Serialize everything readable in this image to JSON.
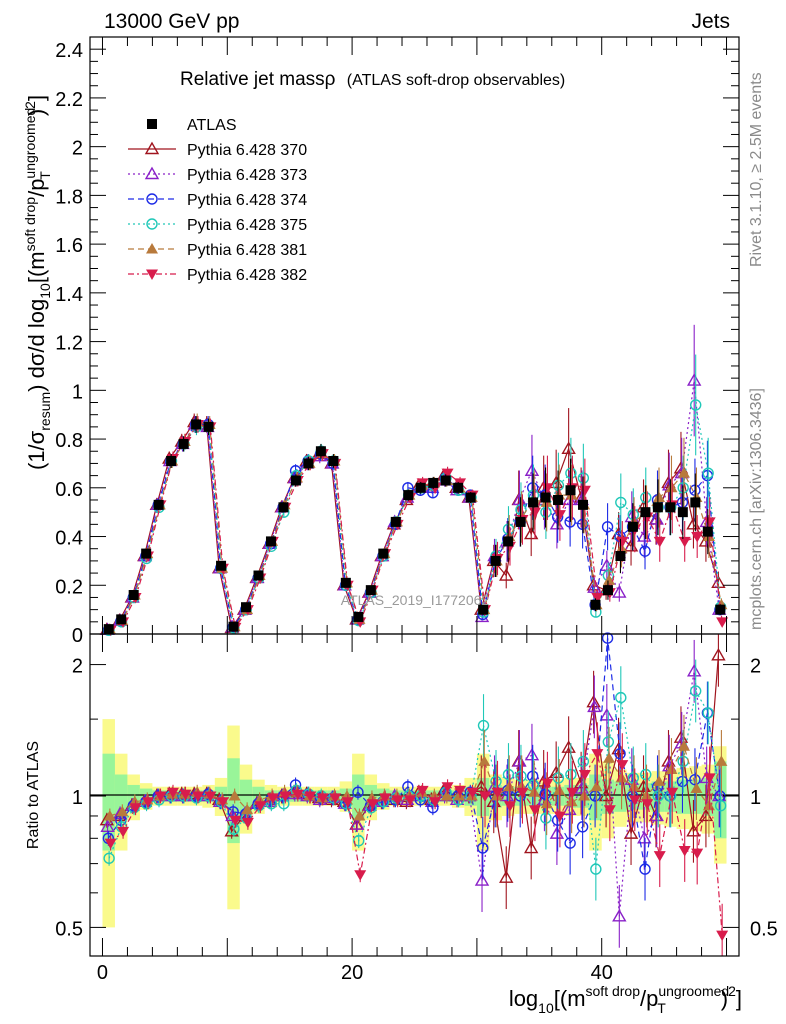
{
  "header": {
    "energy_label": "13000 GeV pp",
    "category_label": "Jets"
  },
  "side": {
    "rivet_label": "Rivet 3.1.10, ≥ 2.5M events",
    "mcplots_label": "mcplots.cern.ch [arXiv:1306.3436]"
  },
  "watermark": "ATLAS_2019_I1772062",
  "chart_data": {
    "type": "scatter",
    "title": "Relative jet massρ",
    "subtitle": "(ATLAS soft-drop observables)",
    "ylabel": "(1/σresum) dσ/d log10[(msoft drop/pTungroomed)2]",
    "xlabel": "log10[(msoft drop/pTungroomed)2]",
    "ratio_ylabel": "Ratio to ATLAS",
    "xlim": [
      -1,
      51
    ],
    "ylim": [
      0,
      2.45
    ],
    "ratio_ylim": [
      0.43,
      2.35
    ],
    "x_ticks": [
      0,
      20,
      40
    ],
    "y_ticks": [
      0,
      0.2,
      0.4,
      0.6,
      0.8,
      1,
      1.2,
      1.4,
      1.6,
      1.8,
      2,
      2.2,
      2.4
    ],
    "y_tick_labels": [
      "0",
      "0.2",
      "0.4",
      "0.6",
      "0.8",
      "1",
      "1.2",
      "1.4",
      "1.6",
      "1.8",
      "2",
      "2.2",
      "2.4"
    ],
    "ratio_ticks": [
      0.5,
      1,
      2
    ],
    "ratio_tick_labels": [
      "0.5",
      "1",
      "2"
    ],
    "x": [
      0.5,
      1.5,
      2.5,
      3.5,
      4.5,
      5.5,
      6.5,
      7.5,
      8.5,
      9.5,
      10.5,
      11.5,
      12.5,
      13.5,
      14.5,
      15.5,
      16.5,
      17.5,
      18.5,
      19.5,
      20.5,
      21.5,
      22.5,
      23.5,
      24.5,
      25.5,
      26.5,
      27.5,
      28.5,
      29.5,
      30.5,
      31.5,
      32.5,
      33.5,
      34.5,
      35.5,
      36.5,
      37.5,
      38.5,
      39.5,
      40.5,
      41.5,
      42.5,
      43.5,
      44.5,
      45.5,
      46.5,
      47.5,
      48.5,
      49.5
    ],
    "series": [
      {
        "name": "ATLAS",
        "color": "#000000",
        "marker": "square",
        "dash": "",
        "line": false,
        "values": [
          0.02,
          0.06,
          0.16,
          0.33,
          0.53,
          0.71,
          0.78,
          0.86,
          0.85,
          0.28,
          0.03,
          0.11,
          0.24,
          0.38,
          0.52,
          0.63,
          0.7,
          0.75,
          0.71,
          0.21,
          0.07,
          0.18,
          0.33,
          0.46,
          0.57,
          0.6,
          0.62,
          0.63,
          0.6,
          0.56,
          0.1,
          0.3,
          0.38,
          0.46,
          0.54,
          0.56,
          0.55,
          0.59,
          0.53,
          0.12,
          0.18,
          0.32,
          0.44,
          0.5,
          0.52,
          0.52,
          0.5,
          0.54,
          0.42,
          0.1
        ],
        "ratios": [
          1,
          1,
          1,
          1,
          1,
          1,
          1,
          1,
          1,
          1,
          1,
          1,
          1,
          1,
          1,
          1,
          1,
          1,
          1,
          1,
          1,
          1,
          1,
          1,
          1,
          1,
          1,
          1,
          1,
          1,
          1,
          1,
          1,
          1,
          1,
          1,
          1,
          1,
          1,
          1,
          1,
          1,
          1,
          1,
          1,
          1,
          1,
          1,
          1,
          1
        ]
      },
      {
        "name": "Pythia 6.428 370",
        "color": "#a0141e",
        "marker": "triangle-open",
        "dash": "",
        "line": true,
        "values": [
          0.018,
          0.055,
          0.15,
          0.32,
          0.53,
          0.72,
          0.79,
          0.87,
          0.86,
          0.27,
          0.025,
          0.1,
          0.23,
          0.37,
          0.52,
          0.64,
          0.71,
          0.74,
          0.7,
          0.2,
          0.06,
          0.17,
          0.32,
          0.45,
          0.55,
          0.61,
          0.61,
          0.65,
          0.6,
          0.56,
          0.1,
          0.3,
          0.24,
          0.55,
          0.41,
          0.6,
          0.62,
          0.76,
          0.56,
          0.2,
          0.18,
          0.41,
          0.36,
          0.52,
          0.47,
          0.62,
          0.68,
          0.45,
          0.38,
          0.21
        ],
        "ratios": [
          0.88,
          0.9,
          0.95,
          0.97,
          1.0,
          1.01,
          1.01,
          1.01,
          1.01,
          0.98,
          0.83,
          0.9,
          0.96,
          0.98,
          1.0,
          1.02,
          1.01,
          0.99,
          0.98,
          0.97,
          0.86,
          0.95,
          0.97,
          0.98,
          0.97,
          1.02,
          0.98,
          1.03,
          1.0,
          1.0,
          1.05,
          0.97,
          0.65,
          1.2,
          0.76,
          1.08,
          1.13,
          1.29,
          1.07,
          1.64,
          1.0,
          1.28,
          0.82,
          1.05,
          0.9,
          1.2,
          1.36,
          0.83,
          0.9,
          2.1
        ]
      },
      {
        "name": "Pythia 6.428 373",
        "color": "#8a20c8",
        "marker": "triangle-open",
        "dash": "2,3",
        "line": true,
        "values": [
          0.017,
          0.055,
          0.15,
          0.32,
          0.53,
          0.71,
          0.78,
          0.86,
          0.85,
          0.27,
          0.028,
          0.1,
          0.23,
          0.37,
          0.52,
          0.64,
          0.7,
          0.73,
          0.7,
          0.2,
          0.06,
          0.17,
          0.32,
          0.46,
          0.56,
          0.6,
          0.6,
          0.63,
          0.59,
          0.56,
          0.07,
          0.32,
          0.38,
          0.55,
          0.67,
          0.55,
          0.45,
          0.55,
          0.55,
          0.19,
          0.28,
          0.17,
          0.48,
          0.4,
          0.47,
          0.61,
          0.66,
          1.04,
          0.46,
          0.1
        ],
        "ratios": [
          0.85,
          0.91,
          0.95,
          0.97,
          1.0,
          1.0,
          1.0,
          1.0,
          1.0,
          0.97,
          0.9,
          0.91,
          0.96,
          0.97,
          1.0,
          1.01,
          1.0,
          0.98,
          0.99,
          0.96,
          0.86,
          0.95,
          0.97,
          1.0,
          0.98,
          1.0,
          0.97,
          1.0,
          0.98,
          1.0,
          0.64,
          1.05,
          1.0,
          1.2,
          1.24,
          0.98,
          0.82,
          0.93,
          1.04,
          1.6,
          1.53,
          0.53,
          1.09,
          0.8,
          0.9,
          1.17,
          1.32,
          1.93,
          1.1,
          1.0
        ]
      },
      {
        "name": "Pythia 6.428 374",
        "color": "#1d2be6",
        "marker": "circle-open",
        "dash": "6,4",
        "line": true,
        "values": [
          0.016,
          0.052,
          0.15,
          0.32,
          0.53,
          0.71,
          0.78,
          0.86,
          0.86,
          0.27,
          0.029,
          0.1,
          0.23,
          0.37,
          0.52,
          0.67,
          0.71,
          0.74,
          0.7,
          0.2,
          0.06,
          0.17,
          0.32,
          0.45,
          0.6,
          0.59,
          0.58,
          0.64,
          0.6,
          0.57,
          0.08,
          0.3,
          0.39,
          0.46,
          0.6,
          0.57,
          0.48,
          0.46,
          0.45,
          0.12,
          0.44,
          0.4,
          0.44,
          0.34,
          0.55,
          0.52,
          0.54,
          0.59,
          0.65,
          0.1
        ],
        "ratios": [
          0.8,
          0.88,
          0.95,
          0.97,
          1.0,
          1.0,
          1.0,
          1.0,
          1.01,
          0.97,
          0.92,
          0.91,
          0.96,
          0.98,
          1.0,
          1.06,
          1.01,
          0.99,
          0.99,
          0.96,
          1.02,
          0.95,
          0.97,
          0.98,
          1.05,
          0.98,
          0.94,
          1.02,
          1.0,
          1.02,
          0.76,
          1.0,
          1.03,
          1.0,
          1.11,
          1.01,
          0.88,
          0.78,
          0.85,
          1.0,
          2.3,
          1.25,
          1.0,
          0.68,
          1.05,
          1.0,
          1.08,
          1.09,
          1.55,
          1.0
        ]
      },
      {
        "name": "Pythia 6.428 375",
        "color": "#20c8b8",
        "marker": "circle-open",
        "dash": "2,3",
        "line": true,
        "values": [
          0.015,
          0.05,
          0.15,
          0.31,
          0.52,
          0.71,
          0.78,
          0.85,
          0.85,
          0.27,
          0.025,
          0.1,
          0.23,
          0.36,
          0.5,
          0.65,
          0.71,
          0.75,
          0.71,
          0.2,
          0.055,
          0.17,
          0.32,
          0.46,
          0.57,
          0.6,
          0.61,
          0.64,
          0.59,
          0.56,
          0.09,
          0.32,
          0.43,
          0.51,
          0.57,
          0.5,
          0.61,
          0.66,
          0.64,
          0.09,
          0.24,
          0.54,
          0.49,
          0.56,
          0.52,
          0.52,
          0.6,
          0.94,
          0.66,
          0.11
        ],
        "ratios": [
          0.72,
          0.85,
          0.94,
          0.96,
          0.98,
          1.0,
          1.0,
          0.99,
          1.0,
          0.97,
          0.84,
          0.89,
          0.95,
          0.96,
          0.96,
          1.03,
          1.01,
          1.0,
          0.99,
          0.96,
          0.79,
          0.94,
          0.97,
          0.99,
          1.0,
          1.0,
          0.98,
          1.02,
          0.98,
          1.0,
          1.45,
          1.08,
          1.12,
          1.11,
          1.06,
          0.89,
          1.1,
          1.12,
          1.2,
          0.68,
          1.33,
          1.68,
          1.1,
          1.12,
          1.0,
          1.0,
          1.2,
          1.74,
          1.55,
          0.95
        ]
      },
      {
        "name": "Pythia 6.428 381",
        "color": "#b87a3c",
        "marker": "triangle-filled",
        "dash": "6,4",
        "line": true,
        "values": [
          0.02,
          0.055,
          0.16,
          0.33,
          0.53,
          0.71,
          0.79,
          0.87,
          0.86,
          0.27,
          0.03,
          0.1,
          0.24,
          0.38,
          0.53,
          0.64,
          0.7,
          0.74,
          0.71,
          0.21,
          0.06,
          0.18,
          0.33,
          0.46,
          0.57,
          0.61,
          0.62,
          0.63,
          0.6,
          0.56,
          0.1,
          0.3,
          0.4,
          0.48,
          0.55,
          0.54,
          0.57,
          0.57,
          0.53,
          0.12,
          0.22,
          0.35,
          0.46,
          0.5,
          0.56,
          0.6,
          0.66,
          0.56,
          0.4,
          0.12
        ],
        "ratios": [
          0.9,
          0.92,
          0.97,
          0.98,
          1.0,
          1.01,
          1.01,
          1.02,
          1.01,
          0.98,
          1.0,
          0.93,
          0.98,
          1.0,
          1.02,
          1.02,
          1.0,
          0.99,
          1.0,
          1.0,
          0.9,
          0.99,
          1.0,
          1.0,
          1.0,
          1.02,
          1.0,
          1.0,
          1.0,
          1.0,
          1.2,
          1.0,
          1.05,
          1.05,
          1.02,
          0.96,
          1.03,
          0.97,
          1.0,
          1.05,
          1.22,
          1.1,
          1.05,
          1.0,
          1.08,
          1.15,
          1.3,
          1.04,
          0.95,
          1.2
        ]
      },
      {
        "name": "Pythia 6.428 382",
        "color": "#d81c4c",
        "marker": "triangle-down-filled",
        "dash": "6,3,2,3",
        "line": true,
        "values": [
          0.016,
          0.05,
          0.15,
          0.32,
          0.53,
          0.72,
          0.79,
          0.86,
          0.85,
          0.27,
          0.027,
          0.1,
          0.23,
          0.38,
          0.52,
          0.63,
          0.7,
          0.74,
          0.7,
          0.2,
          0.05,
          0.18,
          0.33,
          0.45,
          0.56,
          0.62,
          0.6,
          0.66,
          0.62,
          0.57,
          0.1,
          0.31,
          0.36,
          0.47,
          0.5,
          0.6,
          0.49,
          0.6,
          0.59,
          0.15,
          0.17,
          0.38,
          0.43,
          0.48,
          0.38,
          0.53,
          0.38,
          0.4,
          0.46,
          0.05
        ],
        "ratios": [
          0.78,
          0.83,
          0.94,
          0.97,
          1.0,
          1.02,
          1.01,
          1.0,
          1.0,
          0.97,
          0.88,
          0.87,
          0.95,
          0.99,
          1.0,
          1.01,
          1.0,
          0.99,
          0.99,
          0.97,
          0.66,
          0.96,
          0.99,
          0.98,
          0.98,
          1.03,
          0.97,
          1.05,
          1.03,
          1.02,
          1.0,
          1.02,
          0.95,
          1.02,
          0.93,
          1.07,
          0.9,
          1.02,
          1.12,
          1.25,
          0.93,
          1.18,
          0.98,
          0.96,
          0.73,
          1.02,
          0.75,
          0.74,
          1.1,
          0.48
        ]
      }
    ],
    "band_inner": [
      0.25,
      0.12,
      0.06,
      0.04,
      0.03,
      0.03,
      0.03,
      0.03,
      0.03,
      0.05,
      0.22,
      0.09,
      0.05,
      0.03,
      0.03,
      0.03,
      0.03,
      0.03,
      0.03,
      0.04,
      0.12,
      0.06,
      0.04,
      0.03,
      0.03,
      0.03,
      0.03,
      0.03,
      0.03,
      0.05,
      0.1,
      0.06,
      0.05,
      0.05,
      0.05,
      0.05,
      0.05,
      0.06,
      0.06,
      0.12,
      0.09,
      0.08,
      0.07,
      0.07,
      0.08,
      0.08,
      0.09,
      0.09,
      0.1,
      0.2
    ],
    "band_outer": [
      0.5,
      0.25,
      0.12,
      0.07,
      0.05,
      0.05,
      0.05,
      0.05,
      0.06,
      0.1,
      0.45,
      0.18,
      0.09,
      0.06,
      0.05,
      0.05,
      0.05,
      0.05,
      0.05,
      0.08,
      0.25,
      0.12,
      0.07,
      0.05,
      0.05,
      0.05,
      0.05,
      0.05,
      0.06,
      0.1,
      0.25,
      0.12,
      0.1,
      0.09,
      0.09,
      0.09,
      0.09,
      0.1,
      0.1,
      0.25,
      0.2,
      0.15,
      0.13,
      0.13,
      0.14,
      0.15,
      0.16,
      0.17,
      0.18,
      0.3
    ],
    "band_inner_color": "#99f599",
    "band_outer_color": "#fafa8c"
  }
}
